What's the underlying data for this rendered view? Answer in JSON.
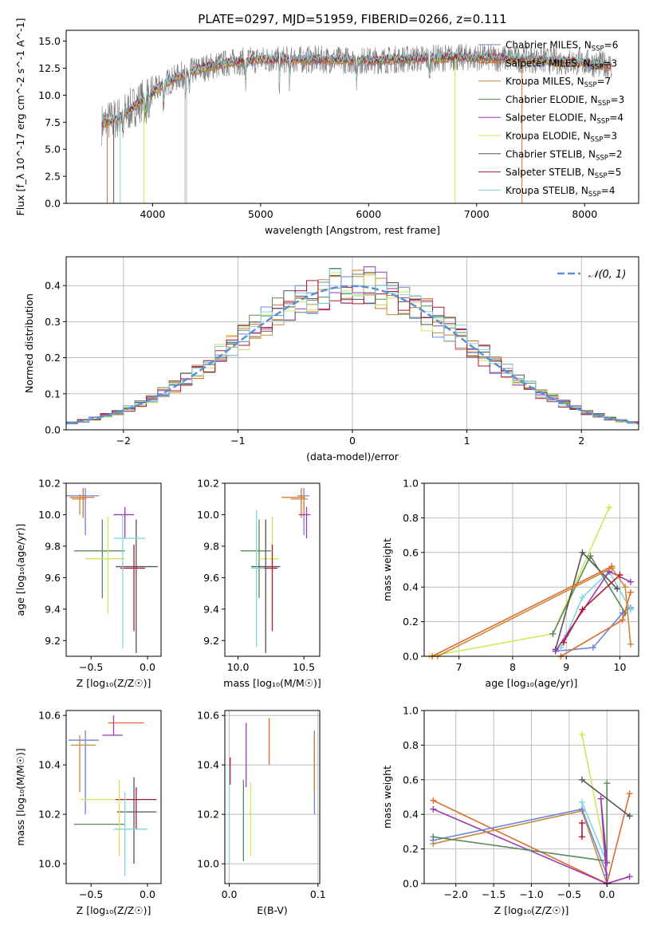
{
  "title": "PLATE=0297, MJD=51959, FIBERID=0266, z=0.111",
  "colors": {
    "Chabrier MILES": "#6a86d8",
    "Salpeter MILES": "#e06a2a",
    "Kroupa MILES": "#c98a3a",
    "Chabrier ELODIE": "#5a8a5a",
    "Salpeter ELODIE": "#9b39b0",
    "Kroupa ELODIE": "#cde85a",
    "Chabrier STELIB": "#555555",
    "Salpeter STELIB": "#b2182b",
    "Kroupa STELIB": "#7fd6de",
    "gaussian": "#5b8fd6"
  },
  "chart_data": [
    {
      "type": "line",
      "panel": "spectrum",
      "xlabel": "wavelength [Angstrom, rest frame]",
      "ylabel": "Flux [f_λ 10^-17 erg cm^-2 s^-1 A^-1]",
      "xlim": [
        3200,
        8500
      ],
      "ylim": [
        0,
        16
      ],
      "xticks": [
        "4000",
        "5000",
        "6000",
        "7000",
        "8000"
      ],
      "yticks": [
        "0.0",
        "2.5",
        "5.0",
        "7.5",
        "10.0",
        "12.5",
        "15.0"
      ],
      "continuum_x": [
        3500,
        3700,
        3900,
        4100,
        4300,
        4500,
        4700,
        5000,
        5500,
        6000,
        6500,
        7000,
        7500,
        8000,
        8250
      ],
      "continuum_y": [
        7.2,
        8.0,
        9.5,
        11.0,
        12.0,
        12.6,
        13.0,
        13.3,
        13.3,
        13.2,
        13.4,
        13.5,
        13.3,
        13.0,
        12.7
      ],
      "legend": [
        {
          "label": "Chabrier MILES, N",
          "sub": "SSP",
          "suffix": "=6"
        },
        {
          "label": "Salpeter MILES, N",
          "sub": "SSP",
          "suffix": "=3"
        },
        {
          "label": "Kroupa MILES, N",
          "sub": "SSP",
          "suffix": "=7"
        },
        {
          "label": "Chabrier ELODIE, N",
          "sub": "SSP",
          "suffix": "=3"
        },
        {
          "label": "Salpeter ELODIE, N",
          "sub": "SSP",
          "suffix": "=4"
        },
        {
          "label": "Kroupa ELODIE, N",
          "sub": "SSP",
          "suffix": "=3"
        },
        {
          "label": "Chabrier STELIB, N",
          "sub": "SSP",
          "suffix": "=2"
        },
        {
          "label": "Salpeter STELIB, N",
          "sub": "SSP",
          "suffix": "=5"
        },
        {
          "label": "Kroupa STELIB, N",
          "sub": "SSP",
          "suffix": "=4"
        }
      ],
      "legend_placement": "right"
    },
    {
      "type": "histogram",
      "panel": "residuals",
      "xlabel": "(data-model)/error",
      "ylabel": "Normed distribution",
      "xlim": [
        -2.5,
        2.5
      ],
      "ylim": [
        0,
        0.48
      ],
      "xticks": [
        "−2",
        "−1",
        "0",
        "1",
        "2"
      ],
      "yticks": [
        "0.0",
        "0.1",
        "0.2",
        "0.3",
        "0.4"
      ],
      "legend": "𝒩(0, 1)",
      "legend_placement": "top-right",
      "bin_width": 0.1,
      "grid": true
    },
    {
      "type": "errorbar",
      "panel": "age_vs_Z",
      "xlabel": "Z [log₁₀(Z/Z☉)]",
      "ylabel": "age [log₁₀(age/yr)]",
      "xlim": [
        -0.72,
        0.12
      ],
      "ylim": [
        9.1,
        10.2
      ],
      "xticks": [
        "−0.5",
        "0.0"
      ],
      "yticks": [
        "9.2",
        "9.4",
        "9.6",
        "9.8",
        "10.0",
        "10.2"
      ],
      "points": [
        {
          "model": "Chabrier MILES",
          "x": -0.55,
          "y": 10.12,
          "xerr": [
            0.17,
            0.12
          ],
          "yerr": [
            0.25,
            0.05
          ]
        },
        {
          "model": "Salpeter MILES",
          "x": -0.57,
          "y": 10.11,
          "xerr": [
            0.12,
            0.1
          ],
          "yerr": [
            0.13,
            0.06
          ]
        },
        {
          "model": "Kroupa MILES",
          "x": -0.6,
          "y": 10.1,
          "xerr": [
            0.07,
            0.06
          ],
          "yerr": [
            0.1,
            0.03
          ]
        },
        {
          "model": "Chabrier ELODIE",
          "x": -0.4,
          "y": 9.77,
          "xerr": [
            0.25,
            0.2
          ],
          "yerr": [
            0.3,
            0.2
          ]
        },
        {
          "model": "Salpeter ELODIE",
          "x": -0.2,
          "y": 10.0,
          "xerr": [
            0.1,
            0.08
          ],
          "yerr": [
            0.15,
            0.05
          ]
        },
        {
          "model": "Kroupa ELODIE",
          "x": -0.35,
          "y": 9.72,
          "xerr": [
            0.2,
            0.15
          ],
          "yerr": [
            0.35,
            0.27
          ]
        },
        {
          "model": "Chabrier STELIB",
          "x": -0.1,
          "y": 9.67,
          "xerr": [
            0.18,
            0.19
          ],
          "yerr": [
            0.55,
            0.3
          ]
        },
        {
          "model": "Salpeter STELIB",
          "x": -0.12,
          "y": 9.66,
          "xerr": [
            0.12,
            0.1
          ],
          "yerr": [
            0.4,
            0.15
          ]
        },
        {
          "model": "Kroupa STELIB",
          "x": -0.22,
          "y": 9.85,
          "xerr": [
            0.08,
            0.2
          ],
          "yerr": [
            0.7,
            0.15
          ]
        }
      ]
    },
    {
      "type": "errorbar",
      "panel": "age_vs_mass",
      "xlabel": "mass [log₁₀(M/M☉)]",
      "xlim": [
        9.9,
        10.62
      ],
      "ylim": [
        9.1,
        10.2
      ],
      "xticks": [
        "10.0",
        "10.5"
      ],
      "yticks": [
        "9.2",
        "9.4",
        "9.6",
        "9.8",
        "10.0",
        "10.2"
      ],
      "points": [
        {
          "model": "Chabrier MILES",
          "x": 10.5,
          "y": 10.12,
          "xerr": [
            0.05,
            0.04
          ],
          "yerr": [
            0.25,
            0.05
          ]
        },
        {
          "model": "Salpeter MILES",
          "x": 10.48,
          "y": 10.11,
          "xerr": [
            0.15,
            0.03
          ],
          "yerr": [
            0.13,
            0.06
          ]
        },
        {
          "model": "Kroupa MILES",
          "x": 10.5,
          "y": 10.1,
          "xerr": [
            0.1,
            0.03
          ],
          "yerr": [
            0.1,
            0.03
          ]
        },
        {
          "model": "Chabrier ELODIE",
          "x": 10.16,
          "y": 9.77,
          "xerr": [
            0.14,
            0.09
          ],
          "yerr": [
            0.3,
            0.2
          ]
        },
        {
          "model": "Salpeter ELODIE",
          "x": 10.52,
          "y": 10.0,
          "xerr": [
            0.06,
            0.03
          ],
          "yerr": [
            0.15,
            0.05
          ]
        },
        {
          "model": "Kroupa ELODIE",
          "x": 10.26,
          "y": 9.72,
          "xerr": [
            0.1,
            0.05
          ],
          "yerr": [
            0.35,
            0.27
          ]
        },
        {
          "model": "Chabrier STELIB",
          "x": 10.21,
          "y": 9.67,
          "xerr": [
            0.11,
            0.11
          ],
          "yerr": [
            0.55,
            0.3
          ]
        },
        {
          "model": "Salpeter STELIB",
          "x": 10.26,
          "y": 9.66,
          "xerr": [
            0.1,
            0.04
          ],
          "yerr": [
            0.4,
            0.15
          ]
        },
        {
          "model": "Kroupa STELIB",
          "x": 10.14,
          "y": 9.66,
          "xerr": [
            0.04,
            0.06
          ],
          "yerr": [
            0.5,
            0.37
          ]
        }
      ]
    },
    {
      "type": "line",
      "panel": "weight_vs_age",
      "xlabel": "age [log₁₀(age/yr)]",
      "ylabel": "mass weight",
      "xlim": [
        6.35,
        10.35
      ],
      "ylim": [
        0,
        1
      ],
      "xticks": [
        "7",
        "8",
        "9",
        "10"
      ],
      "yticks": [
        "0.0",
        "0.2",
        "0.4",
        "0.6",
        "0.8",
        "1.0"
      ],
      "grid": true,
      "series": [
        {
          "model": "Kroupa ELODIE",
          "x": [
            6.45,
            8.75,
            9.8
          ],
          "y": [
            0.0,
            0.13,
            0.86
          ]
        },
        {
          "model": "Chabrier MILES",
          "x": [
            8.8,
            9.5,
            10.05,
            10.2
          ],
          "y": [
            0.03,
            0.05,
            0.25,
            0.28
          ]
        },
        {
          "model": "Kroupa STELIB",
          "x": [
            8.9,
            9.0,
            9.3,
            9.8,
            10.2
          ],
          "y": [
            0.05,
            0.12,
            0.34,
            0.49,
            0.27
          ]
        },
        {
          "model": "Chabrier ELODIE",
          "x": [
            8.75,
            9.45,
            10.1
          ],
          "y": [
            0.13,
            0.58,
            0.25
          ]
        },
        {
          "model": "Chabrier STELIB",
          "x": [
            8.8,
            9.3,
            9.95
          ],
          "y": [
            0.04,
            0.6,
            0.39
          ]
        },
        {
          "model": "Salpeter ELODIE",
          "x": [
            8.8,
            9.8,
            10.2
          ],
          "y": [
            0.03,
            0.49,
            0.43
          ]
        },
        {
          "model": "Salpeter STELIB",
          "x": [
            8.95,
            9.3,
            10.0
          ],
          "y": [
            0.08,
            0.27,
            0.47
          ]
        },
        {
          "model": "Kroupa MILES",
          "x": [
            6.6,
            9.85,
            10.1,
            10.2
          ],
          "y": [
            0.0,
            0.51,
            0.4,
            0.07
          ]
        },
        {
          "model": "Salpeter MILES",
          "x": [
            8.9,
            10.05,
            10.2
          ],
          "y": [
            0.0,
            0.21,
            0.37
          ]
        },
        {
          "model": "Salpeter MILES",
          "x": [
            6.5,
            9.85
          ],
          "y": [
            0.0,
            0.52
          ]
        }
      ]
    },
    {
      "type": "errorbar",
      "panel": "mass_vs_Z",
      "xlabel": "Z [log₁₀(Z/Z☉)]",
      "ylabel": "mass [log₁₀(M/M☉)]",
      "xlim": [
        -0.72,
        0.12
      ],
      "ylim": [
        9.92,
        10.62
      ],
      "xticks": [
        "−0.5",
        "0.0"
      ],
      "yticks": [
        "10.0",
        "10.2",
        "10.4",
        "10.6"
      ],
      "points": [
        {
          "model": "Chabrier MILES",
          "x": -0.55,
          "y": 10.5,
          "xerr": [
            0.15,
            0.12
          ],
          "yerr": [
            0.3,
            0.04
          ]
        },
        {
          "model": "Kroupa MILES",
          "x": -0.6,
          "y": 10.48,
          "xerr": [
            0.08,
            0.14
          ],
          "yerr": [
            0.19,
            0.04
          ]
        },
        {
          "model": "Salpeter ELODIE",
          "x": -0.3,
          "y": 10.52,
          "xerr": [
            0.1,
            0.08
          ],
          "yerr": [
            0.0,
            0.08
          ]
        },
        {
          "model": "Salpeter MILES",
          "x": -0.08,
          "y": 10.57,
          "xerr": [
            0.27,
            0.05
          ],
          "yerr": [
            0.0,
            0.0
          ]
        },
        {
          "model": "Kroupa ELODIE",
          "x": -0.42,
          "y": 10.26,
          "xerr": [
            0.18,
            0.22
          ],
          "yerr": [
            0.0,
            0.0
          ]
        },
        {
          "model": "Chabrier ELODIE",
          "x": -0.35,
          "y": 10.16,
          "xerr": [
            0.3,
            0.15
          ],
          "yerr": [
            0.0,
            0.0
          ]
        },
        {
          "model": "Salpeter STELIB",
          "x": -0.1,
          "y": 10.26,
          "xerr": [
            0.18,
            0.18
          ],
          "yerr": [
            0.12,
            0.05
          ]
        },
        {
          "model": "Chabrier STELIB",
          "x": -0.12,
          "y": 10.21,
          "xerr": [
            0.15,
            0.2
          ],
          "yerr": [
            0.21,
            0.14
          ]
        },
        {
          "model": "Kroupa STELIB",
          "x": -0.2,
          "y": 10.14,
          "xerr": [
            0.1,
            0.2
          ],
          "yerr": [
            0.19,
            0.15
          ]
        },
        {
          "model": "Kroupa ELODIE",
          "x": -0.25,
          "y": 10.14,
          "xerr": [
            0.0,
            0.0
          ],
          "yerr": [
            0.11,
            0.2
          ]
        }
      ]
    },
    {
      "type": "errorbar",
      "panel": "mass_vs_ebv",
      "xlabel": "E(B-V)",
      "xlim": [
        -0.005,
        0.102
      ],
      "ylim": [
        9.92,
        10.62
      ],
      "xticks": [
        "0.0",
        "0.1"
      ],
      "yticks": [
        "10.0",
        "10.2",
        "10.4",
        "10.6"
      ],
      "grid": true,
      "points": [
        {
          "model": "Chabrier MILES",
          "x": 0.096,
          "y": 10.5,
          "xerr": [
            0,
            0
          ],
          "yerr": [
            0.3,
            0.04
          ]
        },
        {
          "model": "Kroupa MILES",
          "x": 0.096,
          "y": 10.48,
          "xerr": [
            0,
            0
          ],
          "yerr": [
            0.19,
            0.04
          ]
        },
        {
          "model": "Salpeter ELODIE",
          "x": 0.019,
          "y": 10.47,
          "xerr": [
            0,
            0
          ],
          "yerr": [
            0.16,
            0.1
          ]
        },
        {
          "model": "Salpeter MILES",
          "x": 0.045,
          "y": 10.5,
          "xerr": [
            0,
            0
          ],
          "yerr": [
            0.1,
            0.09
          ]
        },
        {
          "model": "Kroupa ELODIE",
          "x": 0.024,
          "y": 10.18,
          "xerr": [
            0,
            0
          ],
          "yerr": [
            0.15,
            0.15
          ]
        },
        {
          "model": "Chabrier ELODIE",
          "x": 0.016,
          "y": 10.18,
          "xerr": [
            0,
            0
          ],
          "yerr": [
            0.17,
            0.16
          ]
        },
        {
          "model": "Salpeter STELIB",
          "x": 0.001,
          "y": 10.4,
          "xerr": [
            0,
            0
          ],
          "yerr": [
            0.08,
            0.03
          ]
        },
        {
          "model": "Kroupa STELIB",
          "x": 0.0,
          "y": 10.2,
          "xerr": [
            0,
            0
          ],
          "yerr": [
            0.2,
            0.2
          ]
        }
      ]
    },
    {
      "type": "line",
      "panel": "weight_vs_Z",
      "xlabel": "Z [log₁₀(Z/Z☉)]",
      "ylabel": "mass weight",
      "xlim": [
        -2.42,
        0.42
      ],
      "ylim": [
        0,
        1
      ],
      "xticks": [
        "−2.0",
        "−1.5",
        "−1.0",
        "−0.5",
        "0.0"
      ],
      "yticks": [
        "0.0",
        "0.2",
        "0.4",
        "0.6",
        "0.8",
        "1.0"
      ],
      "grid": true,
      "series": [
        {
          "model": "Salpeter MILES",
          "x": [
            -2.3,
            0.0,
            0.3
          ],
          "y": [
            0.48,
            0.0,
            0.52
          ]
        },
        {
          "model": "Salpeter ELODIE",
          "x": [
            -2.3,
            0.0,
            0.3
          ],
          "y": [
            0.43,
            0.0,
            0.04
          ]
        },
        {
          "model": "Kroupa MILES",
          "x": [
            -2.3,
            -0.33,
            0.0
          ],
          "y": [
            0.23,
            0.42,
            0.0
          ]
        },
        {
          "model": "Chabrier MILES",
          "x": [
            -2.3,
            -0.33,
            0.0
          ],
          "y": [
            0.25,
            0.43,
            0.05
          ]
        },
        {
          "model": "Chabrier ELODIE",
          "x": [
            -2.3,
            0.0,
            0.0
          ],
          "y": [
            0.27,
            0.13,
            0.58
          ]
        },
        {
          "model": "Kroupa ELODIE",
          "x": [
            -0.33,
            0.0
          ],
          "y": [
            0.86,
            0.13
          ]
        },
        {
          "model": "Chabrier STELIB",
          "x": [
            -0.33,
            0.3
          ],
          "y": [
            0.6,
            0.39
          ]
        },
        {
          "model": "Kroupa STELIB",
          "x": [
            -0.33,
            0.0
          ],
          "y": [
            0.47,
            0.12
          ]
        },
        {
          "model": "Salpeter STELIB",
          "x": [
            -0.33,
            -0.33
          ],
          "y": [
            0.27,
            0.35
          ]
        },
        {
          "model": "Salpeter ELODIE",
          "x": [
            0.0,
            -0.08,
            0.0
          ],
          "y": [
            0.0,
            0.49,
            0.12
          ]
        }
      ]
    }
  ]
}
